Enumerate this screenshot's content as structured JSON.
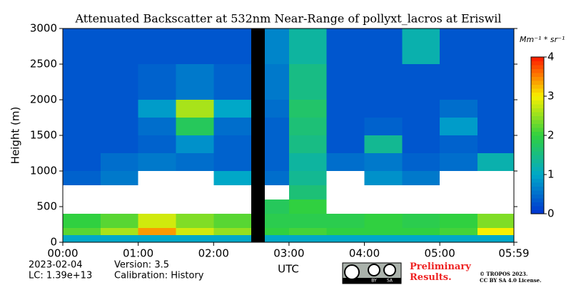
{
  "chart_data": {
    "type": "heatmap",
    "title": "Attenuated Backscatter at 532nm Near-Range of pollyxt_lacros at Eriswil",
    "xlabel": "UTC",
    "ylabel": "Height (m)",
    "xbins": [
      0,
      0.5,
      1,
      1.5,
      2,
      2.5,
      2.68,
      3,
      3.5,
      4,
      4.5,
      5,
      5.5,
      5.983
    ],
    "ybins": [
      0,
      100,
      200,
      400,
      600,
      800,
      1000,
      1250,
      1500,
      1750,
      2000,
      2500,
      3000
    ],
    "values": [
      [
        1.0,
        1.0,
        1.0,
        1.0,
        1.0,
        null,
        1.0,
        1.0,
        1.0,
        1.0,
        1.0,
        1.0,
        1.0
      ],
      [
        2.2,
        2.6,
        3.4,
        2.8,
        2.5,
        null,
        2.0,
        2.1,
        2.0,
        2.0,
        2.0,
        2.1,
        3.0
      ],
      [
        2.0,
        2.2,
        2.8,
        2.4,
        2.2,
        null,
        1.9,
        1.9,
        1.9,
        2.0,
        1.9,
        2.0,
        2.4
      ],
      [
        5,
        5,
        5,
        5,
        5,
        null,
        1.8,
        2.0,
        5,
        5,
        5,
        5,
        5
      ],
      [
        4.5,
        5,
        5,
        5,
        5,
        null,
        5,
        1.6,
        5,
        5,
        5,
        5,
        5
      ],
      [
        0.4,
        0.6,
        4.8,
        4.5,
        1.0,
        null,
        0.5,
        1.4,
        5,
        0.8,
        0.6,
        5,
        5
      ],
      [
        0.3,
        0.5,
        0.6,
        0.5,
        0.4,
        null,
        0.4,
        1.3,
        0.5,
        0.6,
        0.4,
        0.5,
        1.2
      ],
      [
        0.3,
        0.3,
        0.4,
        0.8,
        0.4,
        null,
        0.4,
        1.5,
        0.3,
        1.4,
        0.3,
        0.4,
        0.3
      ],
      [
        0.3,
        0.3,
        0.5,
        1.8,
        0.5,
        null,
        0.4,
        1.6,
        0.3,
        0.4,
        0.3,
        0.9,
        0.3
      ],
      [
        0.3,
        0.3,
        0.9,
        2.6,
        1.0,
        null,
        0.5,
        1.7,
        0.3,
        0.3,
        0.3,
        0.5,
        0.3
      ],
      [
        0.3,
        0.3,
        0.4,
        0.6,
        0.4,
        null,
        0.6,
        1.5,
        0.3,
        0.3,
        0.3,
        0.3,
        0.3
      ],
      [
        0.3,
        0.3,
        0.3,
        0.3,
        0.3,
        null,
        0.7,
        1.3,
        0.3,
        0.3,
        1.2,
        0.3,
        0.3
      ]
    ],
    "xlim": [
      0,
      5.983
    ],
    "ylim": [
      0,
      3000
    ],
    "xticks": [
      {
        "value": 0,
        "label": "00:00"
      },
      {
        "value": 1,
        "label": "01:00"
      },
      {
        "value": 2,
        "label": "02:00"
      },
      {
        "value": 3,
        "label": "03:00"
      },
      {
        "value": 4,
        "label": "04:00"
      },
      {
        "value": 5,
        "label": "05:00"
      },
      {
        "value": 5.983,
        "label": "05:59"
      }
    ],
    "yticks": [
      0,
      500,
      1000,
      1500,
      2000,
      2500,
      3000
    ],
    "clim": [
      0,
      4
    ],
    "cticks": [
      0,
      1,
      2,
      3,
      4
    ],
    "colorbar_label": "Mm⁻¹ * sr⁻¹",
    "colormap": [
      "#0033d0",
      "#00a8c8",
      "#30d040",
      "#f8f000",
      "#ff1800"
    ],
    "over_color": "#ffffff",
    "bad_color": "#000000",
    "date": "2023-02-04",
    "lc": "LC: 1.39e+13",
    "version": "Version: 3.5",
    "calibration": "Calibration: History",
    "notice": "Preliminary Results.",
    "copyright": "© TROPOS 2023.",
    "license": "CC BY SA 4.0 License.",
    "logo": [
      "BY",
      "SA"
    ]
  }
}
